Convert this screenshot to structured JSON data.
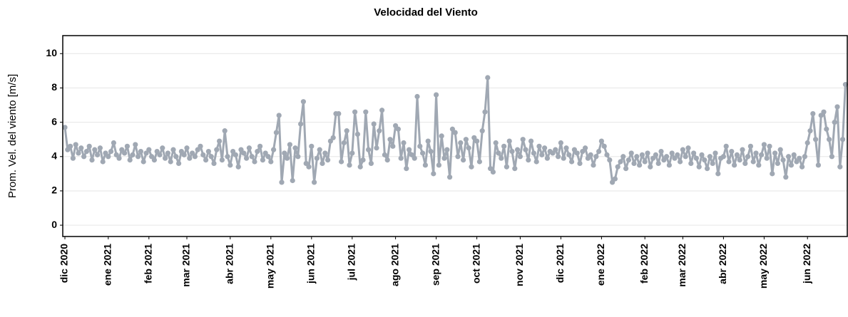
{
  "chart_data": {
    "type": "line",
    "title": "Velocidad del Viento",
    "y_label": "Prom. Vel. del viento [m/s]",
    "color": "#a0a8b3",
    "grid": true,
    "ylim": [
      -0.66,
      11.05
    ],
    "yticks": [
      0,
      2,
      4,
      6,
      8,
      10
    ],
    "categories": [
      "dic 2020",
      null,
      null,
      null,
      null,
      null,
      null,
      null,
      null,
      null,
      null,
      null,
      null,
      null,
      null,
      null,
      "ene 2021",
      null,
      null,
      null,
      null,
      null,
      null,
      null,
      null,
      null,
      null,
      null,
      null,
      null,
      null,
      "feb 2021",
      null,
      null,
      null,
      null,
      null,
      null,
      null,
      null,
      null,
      null,
      null,
      null,
      null,
      "mar 2021",
      null,
      null,
      null,
      null,
      null,
      null,
      null,
      null,
      null,
      null,
      null,
      null,
      null,
      null,
      null,
      "abr 2021",
      null,
      null,
      null,
      null,
      null,
      null,
      null,
      null,
      null,
      null,
      null,
      null,
      null,
      null,
      "may 2021",
      null,
      null,
      null,
      null,
      null,
      null,
      null,
      null,
      null,
      null,
      null,
      null,
      null,
      null,
      "jun 2021",
      null,
      null,
      null,
      null,
      null,
      null,
      null,
      null,
      null,
      null,
      null,
      null,
      null,
      null,
      "jul 2021",
      null,
      null,
      null,
      null,
      null,
      null,
      null,
      null,
      null,
      null,
      null,
      null,
      null,
      null,
      null,
      "ago 2021",
      null,
      null,
      null,
      null,
      null,
      null,
      null,
      null,
      null,
      null,
      null,
      null,
      null,
      null,
      "sep 2021",
      null,
      null,
      null,
      null,
      null,
      null,
      null,
      null,
      null,
      null,
      null,
      null,
      null,
      null,
      "oct 2021",
      null,
      null,
      null,
      null,
      null,
      null,
      null,
      null,
      null,
      null,
      null,
      null,
      null,
      null,
      null,
      "nov 2021",
      null,
      null,
      null,
      null,
      null,
      null,
      null,
      null,
      null,
      null,
      null,
      null,
      null,
      null,
      "dic 2021",
      null,
      null,
      null,
      null,
      null,
      null,
      null,
      null,
      null,
      null,
      null,
      null,
      null,
      null,
      "ene 2022",
      null,
      null,
      null,
      null,
      null,
      null,
      null,
      null,
      null,
      null,
      null,
      null,
      null,
      null,
      null,
      "feb 2022",
      null,
      null,
      null,
      null,
      null,
      null,
      null,
      null,
      null,
      null,
      null,
      null,
      null,
      "mar 2022",
      null,
      null,
      null,
      null,
      null,
      null,
      null,
      null,
      null,
      null,
      null,
      null,
      null,
      null,
      "abr 2022",
      null,
      null,
      null,
      null,
      null,
      null,
      null,
      null,
      null,
      null,
      null,
      null,
      null,
      null,
      "may 2022",
      null,
      null,
      null,
      null,
      null,
      null,
      null,
      null,
      null,
      null,
      null,
      null,
      null,
      null,
      null,
      "jun 2022",
      null,
      null,
      null,
      null,
      null,
      null,
      null,
      null,
      null,
      null,
      null,
      null,
      null,
      null
    ],
    "values": [
      5.7,
      4.4,
      4.6,
      3.9,
      4.7,
      4.2,
      4.5,
      4.0,
      4.3,
      4.6,
      3.8,
      4.4,
      4.1,
      4.5,
      3.7,
      4.2,
      4.0,
      4.3,
      4.8,
      4.1,
      3.9,
      4.4,
      4.2,
      4.6,
      3.8,
      4.1,
      4.7,
      4.0,
      4.3,
      3.7,
      4.2,
      4.4,
      4.0,
      3.8,
      4.3,
      4.1,
      4.5,
      3.9,
      4.2,
      3.7,
      4.4,
      4.0,
      3.6,
      4.3,
      4.1,
      4.5,
      3.9,
      4.2,
      4.0,
      4.4,
      4.6,
      4.1,
      3.8,
      4.3,
      4.0,
      3.6,
      4.4,
      4.9,
      3.8,
      5.5,
      4.0,
      3.5,
      4.3,
      4.1,
      3.4,
      4.4,
      4.2,
      3.9,
      4.5,
      4.0,
      3.7,
      4.3,
      4.6,
      3.8,
      4.2,
      4.0,
      3.7,
      4.4,
      5.4,
      6.4,
      2.5,
      4.2,
      3.9,
      4.7,
      2.6,
      4.5,
      4.0,
      5.9,
      7.2,
      3.6,
      3.4,
      4.6,
      2.5,
      3.9,
      4.4,
      3.6,
      4.2,
      3.8,
      4.9,
      5.1,
      6.5,
      6.5,
      3.7,
      4.8,
      5.5,
      3.5,
      4.2,
      6.6,
      5.3,
      3.4,
      3.8,
      6.6,
      4.4,
      3.6,
      5.9,
      4.5,
      5.5,
      6.7,
      4.1,
      3.8,
      5.0,
      4.6,
      5.8,
      5.6,
      3.9,
      4.8,
      3.3,
      4.4,
      4.1,
      3.9,
      7.5,
      4.6,
      4.2,
      3.5,
      4.9,
      4.3,
      3.0,
      7.6,
      3.5,
      5.2,
      3.9,
      4.4,
      2.8,
      5.6,
      5.4,
      4.0,
      4.8,
      3.8,
      5.0,
      4.5,
      3.4,
      5.1,
      4.9,
      3.7,
      5.5,
      6.6,
      8.6,
      3.3,
      3.1,
      4.8,
      4.2,
      3.9,
      4.6,
      3.4,
      4.9,
      4.3,
      3.3,
      4.4,
      4.0,
      5.0,
      4.4,
      3.8,
      4.9,
      4.2,
      3.7,
      4.6,
      4.1,
      4.5,
      3.9,
      4.3,
      4.2,
      4.4,
      4.0,
      4.8,
      3.9,
      4.5,
      4.1,
      3.7,
      4.4,
      4.2,
      3.6,
      4.3,
      4.5,
      3.9,
      4.1,
      3.5,
      4.0,
      4.3,
      4.9,
      4.6,
      4.1,
      3.8,
      2.5,
      2.7,
      3.4,
      3.7,
      4.0,
      3.3,
      3.8,
      4.2,
      3.6,
      4.0,
      3.5,
      4.1,
      3.7,
      4.2,
      3.4,
      3.9,
      4.1,
      3.6,
      4.3,
      3.8,
      4.0,
      3.5,
      4.2,
      3.9,
      4.1,
      3.7,
      4.4,
      4.0,
      4.5,
      3.6,
      4.2,
      3.9,
      3.4,
      4.1,
      3.8,
      3.3,
      4.0,
      3.6,
      4.2,
      3.0,
      3.9,
      4.0,
      4.6,
      3.7,
      4.3,
      3.5,
      4.1,
      3.8,
      4.4,
      3.6,
      4.0,
      4.6,
      3.7,
      4.2,
      3.5,
      4.1,
      4.7,
      3.9,
      4.6,
      3.0,
      4.2,
      3.6,
      4.4,
      3.8,
      2.8,
      4.0,
      3.5,
      4.1,
      3.7,
      3.9,
      3.4,
      4.0,
      4.8,
      5.5,
      6.5,
      5.0,
      3.5,
      6.4,
      6.6,
      5.6,
      5.0,
      4.0,
      6.0,
      6.9,
      3.4,
      5.0,
      8.2
    ]
  }
}
